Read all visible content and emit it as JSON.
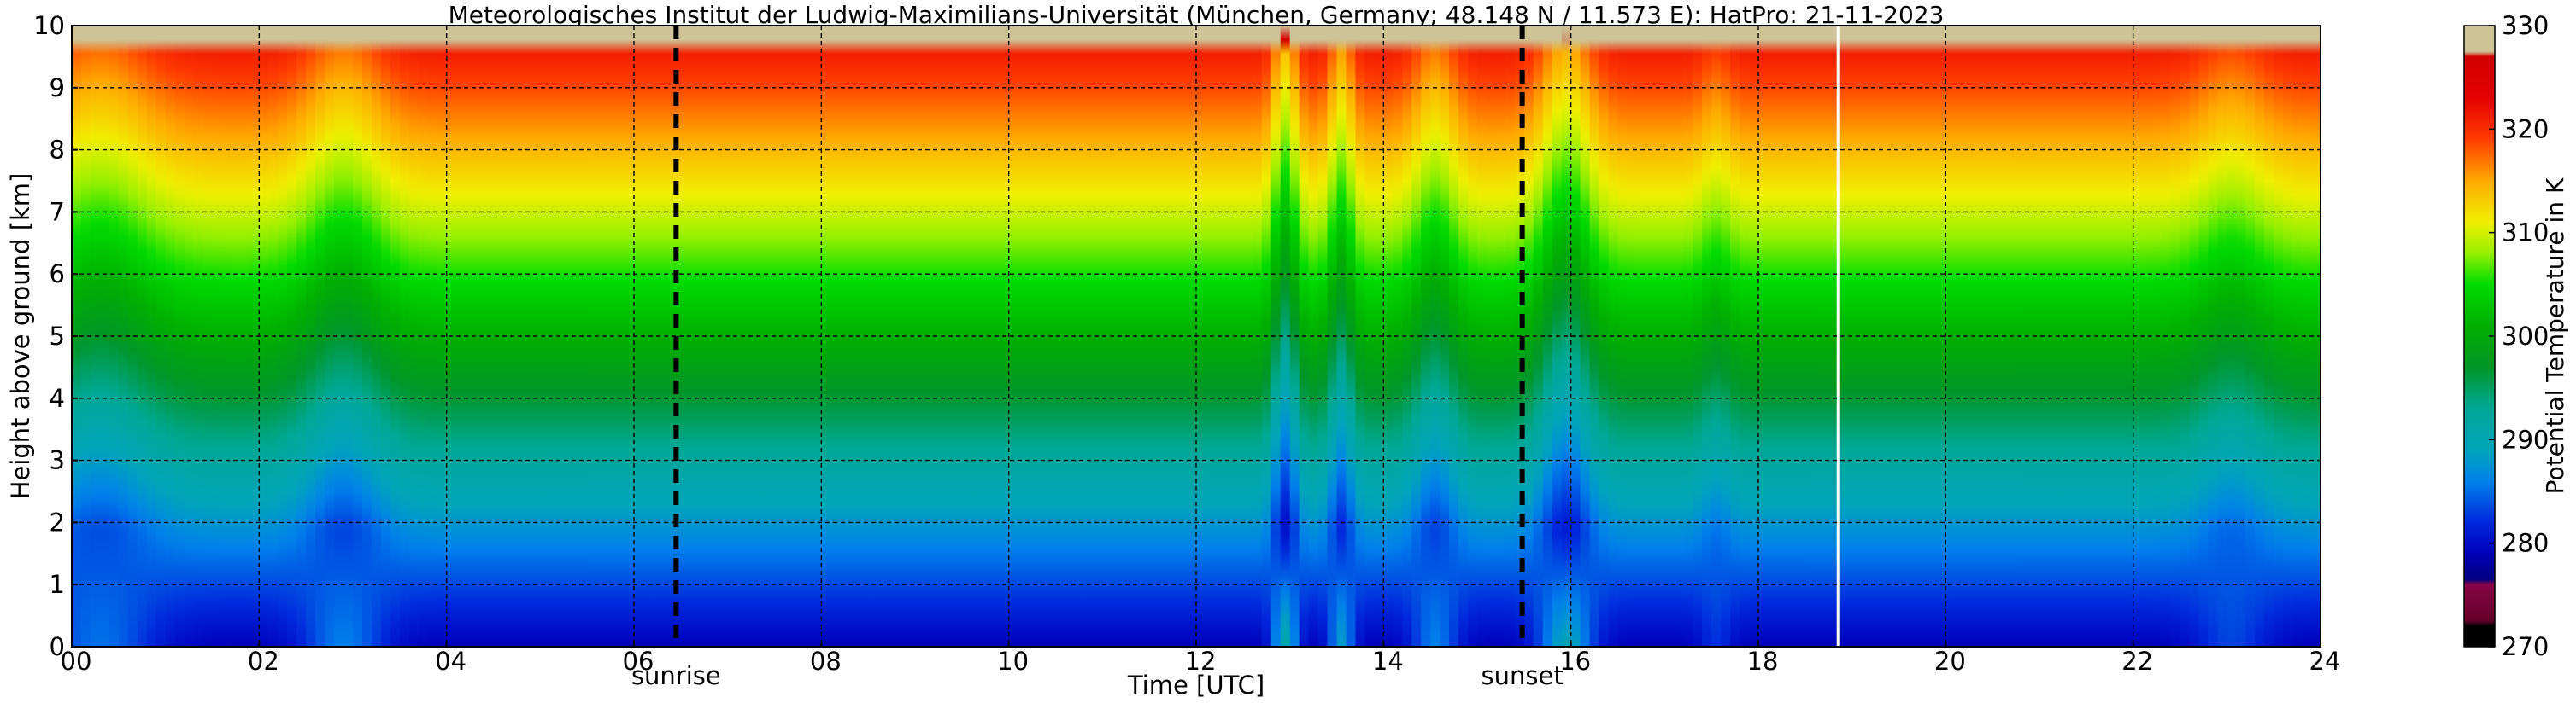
{
  "chart_data": {
    "type": "heatmap",
    "title": "Meteorologisches Institut der Ludwig-Maximilians-Universität (München, Germany; 48.148 N / 11.573 E):    HatPro: 21-11-2023",
    "xlabel": "Time [UTC]",
    "ylabel": "Height above ground [km]",
    "xlim": [
      0,
      24
    ],
    "ylim": [
      0,
      10
    ],
    "x_ticks": [
      "00",
      "02",
      "04",
      "06",
      "08",
      "10",
      "12",
      "14",
      "16",
      "18",
      "20",
      "22",
      "24"
    ],
    "y_ticks": [
      "0",
      "1",
      "2",
      "3",
      "4",
      "5",
      "6",
      "7",
      "8",
      "9",
      "10"
    ],
    "grid": true,
    "colorbar": {
      "label": "Potential Temperature in K",
      "ticks": [
        "270",
        "280",
        "290",
        "300",
        "310",
        "320",
        "330"
      ],
      "range": [
        270,
        330
      ]
    },
    "markers": [
      {
        "label": "sunrise",
        "x": 6.45
      },
      {
        "label": "sunset",
        "x": 15.48
      }
    ],
    "data_gap_x": 18.85,
    "surface_theta_K": 279,
    "lapse_K_per_km": 4.4,
    "dips": [
      {
        "center_hours": 0.3,
        "width_hours": 0.6,
        "depth_km": 0.9
      },
      {
        "center_hours": 2.9,
        "width_hours": 0.45,
        "depth_km": 1.0
      },
      {
        "center_hours": 12.95,
        "width_hours": 0.14,
        "depth_km": 1.7
      },
      {
        "center_hours": 13.55,
        "width_hours": 0.14,
        "depth_km": 1.3
      },
      {
        "center_hours": 14.55,
        "width_hours": 0.25,
        "depth_km": 1.0
      },
      {
        "center_hours": 15.95,
        "width_hours": 0.3,
        "depth_km": 1.5
      },
      {
        "center_hours": 17.55,
        "width_hours": 0.18,
        "depth_km": 0.45
      },
      {
        "center_hours": 23.05,
        "width_hours": 0.4,
        "depth_km": 0.6
      }
    ]
  }
}
